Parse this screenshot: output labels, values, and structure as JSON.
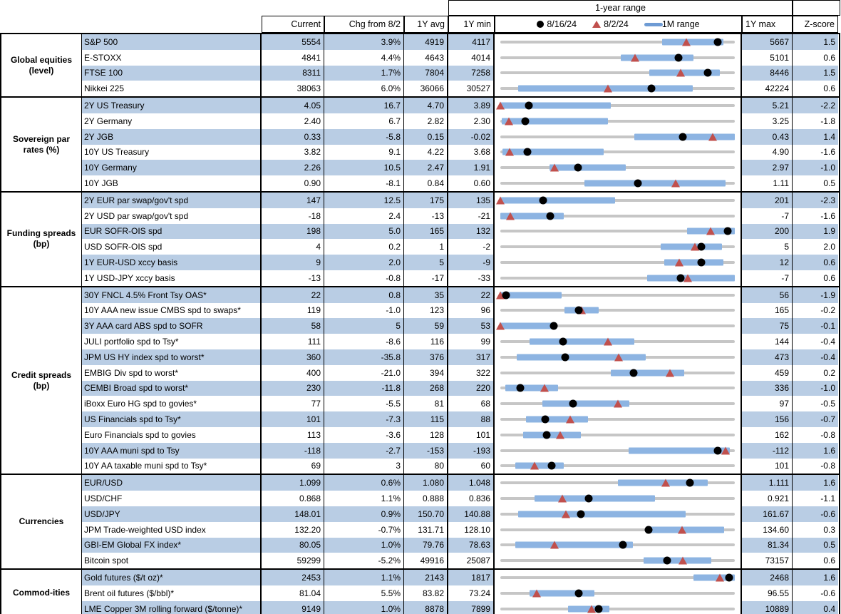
{
  "header": {
    "range_title": "1-year range",
    "col_current": "Current",
    "col_chg": "Chg from 8/2",
    "col_avg": "1Y avg",
    "col_min": "1Y min",
    "col_max": "1Y max",
    "col_z": "Z-score",
    "legend": {
      "dot_label": "8/16/24",
      "tri_label": "8/2/24",
      "bar_label": "1M range"
    }
  },
  "colors": {
    "row_shade": "#b9cde4",
    "range_bar_blue": "#8db4e2",
    "track_gray": "#c6c6c6",
    "triangle_red": "#c0504d",
    "dot_black": "#000000"
  },
  "chart_data": {
    "type": "table",
    "note": "Each row has a 1-year range strip chart: gray track = 1Y min..1Y max, blue bar = 1M range, black dot = 8/16/24 value, red triangle = 8/2/24 value. bar/dot/tri are fractions of the 1Y range.",
    "columns": [
      "Label",
      "Current",
      "Chg from 8/2",
      "1Y avg",
      "1Y min",
      "1Y max",
      "Z-score"
    ],
    "sections": [
      {
        "group": "Global equities (level)",
        "rows": [
          {
            "label": "S&P 500",
            "current": "5554",
            "chg": "3.9%",
            "avg": "4919",
            "min": "4117",
            "max": "5667",
            "z": "1.5",
            "bar": [
              0.69,
              0.95
            ],
            "tri": 0.793,
            "dot": 0.927
          },
          {
            "label": "E-STOXX",
            "current": "4841",
            "chg": "4.4%",
            "avg": "4643",
            "min": "4014",
            "max": "5101",
            "z": "0.6",
            "bar": [
              0.515,
              0.825
            ],
            "tri": 0.573,
            "dot": 0.761
          },
          {
            "label": "FTSE 100",
            "current": "8311",
            "chg": "1.7%",
            "avg": "7804",
            "min": "7258",
            "max": "8446",
            "z": "1.5",
            "bar": [
              0.635,
              0.935
            ],
            "tri": 0.769,
            "dot": 0.886
          },
          {
            "label": "Nikkei 225",
            "current": "38063",
            "chg": "6.0%",
            "avg": "36066",
            "min": "30527",
            "max": "42224",
            "z": "0.6",
            "bar": [
              0.075,
              0.82
            ],
            "tri": 0.46,
            "dot": 0.644
          }
        ]
      },
      {
        "group": "Sovereign par rates (%)",
        "rows": [
          {
            "label": "2Y US Treasury",
            "current": "4.05",
            "chg": "16.7",
            "avg": "4.70",
            "min": "3.89",
            "max": "5.21",
            "z": "-2.2",
            "bar": [
              0.0,
              0.47
            ],
            "tri": 0.0,
            "dot": 0.121
          },
          {
            "label": "2Y Germany",
            "current": "2.40",
            "chg": "6.7",
            "avg": "2.82",
            "min": "2.30",
            "max": "3.25",
            "z": "-1.8",
            "bar": [
              0.005,
              0.46
            ],
            "tri": 0.035,
            "dot": 0.105
          },
          {
            "label": "2Y JGB",
            "current": "0.33",
            "chg": "-5.8",
            "avg": "0.15",
            "min": "-0.02",
            "max": "0.43",
            "z": "1.4",
            "bar": [
              0.57,
              1.0
            ],
            "tri": 0.907,
            "dot": 0.778
          },
          {
            "label": "10Y US Treasury",
            "current": "3.82",
            "chg": "9.1",
            "avg": "4.22",
            "min": "3.68",
            "max": "4.90",
            "z": "-1.6",
            "bar": [
              0.01,
              0.44
            ],
            "tri": 0.04,
            "dot": 0.115
          },
          {
            "label": "10Y Germany",
            "current": "2.26",
            "chg": "10.5",
            "avg": "2.47",
            "min": "1.91",
            "max": "2.97",
            "z": "-1.0",
            "bar": [
              0.21,
              0.535
            ],
            "tri": 0.231,
            "dot": 0.33
          },
          {
            "label": "10Y JGB",
            "current": "0.90",
            "chg": "-8.1",
            "avg": "0.84",
            "min": "0.60",
            "max": "1.11",
            "z": "0.5",
            "bar": [
              0.36,
              0.96
            ],
            "tri": 0.747,
            "dot": 0.588
          }
        ]
      },
      {
        "group": "Funding spreads (bp)",
        "rows": [
          {
            "label": "2Y EUR par swap/gov't spd",
            "current": "147",
            "chg": "12.5",
            "avg": "175",
            "min": "135",
            "max": "201",
            "z": "-2.3",
            "bar": [
              0.0,
              0.49
            ],
            "tri": 0.0,
            "dot": 0.182
          },
          {
            "label": "2Y USD par swap/gov't spd",
            "current": "-18",
            "chg": "2.4",
            "avg": "-13",
            "min": "-21",
            "max": "-7",
            "z": "-1.6",
            "bar": [
              0.0,
              0.27
            ],
            "tri": 0.043,
            "dot": 0.214
          },
          {
            "label": "EUR SOFR-OIS spd",
            "current": "198",
            "chg": "5.0",
            "avg": "165",
            "min": "132",
            "max": "200",
            "z": "1.9",
            "bar": [
              0.795,
              1.0
            ],
            "tri": 0.897,
            "dot": 0.971
          },
          {
            "label": "USD SOFR-OIS spd",
            "current": "4",
            "chg": "0.2",
            "avg": "1",
            "min": "-2",
            "max": "5",
            "z": "2.0",
            "bar": [
              0.685,
              0.945
            ],
            "tri": 0.829,
            "dot": 0.857
          },
          {
            "label": "1Y EUR-USD xccy basis",
            "current": "9",
            "chg": "2.0",
            "avg": "5",
            "min": "-9",
            "max": "12",
            "z": "0.6",
            "bar": [
              0.7,
              0.95
            ],
            "tri": 0.762,
            "dot": 0.857
          },
          {
            "label": "1Y USD-JPY xccy basis",
            "current": "-13",
            "chg": "-0.8",
            "avg": "-17",
            "min": "-33",
            "max": "-7",
            "z": "0.6",
            "bar": [
              0.625,
              1.0
            ],
            "tri": 0.8,
            "dot": 0.769
          }
        ]
      },
      {
        "group": "Credit spreads (bp)",
        "rows": [
          {
            "label": "30Y FNCL 4.5% Front Tsy OAS*",
            "current": "22",
            "chg": "0.8",
            "avg": "35",
            "min": "22",
            "max": "56",
            "z": "-1.9",
            "bar": [
              0.0,
              0.26
            ],
            "tri": 0.0,
            "dot": 0.025
          },
          {
            "label": "10Y AAA new issue CMBS spd to swaps*",
            "current": "119",
            "chg": "-1.0",
            "avg": "123",
            "min": "96",
            "max": "165",
            "z": "-0.2",
            "bar": [
              0.275,
              0.42
            ],
            "tri": 0.348,
            "dot": 0.333
          },
          {
            "label": "3Y AAA card ABS spd to SOFR",
            "current": "58",
            "chg": "5",
            "avg": "59",
            "min": "53",
            "max": "75",
            "z": "-0.1",
            "bar": [
              0.0,
              0.22
            ],
            "tri": 0.0,
            "dot": 0.227
          },
          {
            "label": "JULI portfolio spd to Tsy*",
            "current": "111",
            "chg": "-8.6",
            "avg": "116",
            "min": "99",
            "max": "144",
            "z": "-0.4",
            "bar": [
              0.125,
              0.57
            ],
            "tri": 0.458,
            "dot": 0.267
          },
          {
            "label": "JPM US HY index spd to worst*",
            "current": "360",
            "chg": "-35.8",
            "avg": "376",
            "min": "317",
            "max": "473",
            "z": "-0.4",
            "bar": [
              0.07,
              0.62
            ],
            "tri": 0.505,
            "dot": 0.276
          },
          {
            "label": "EMBIG Div spd to worst*",
            "current": "400",
            "chg": "-21.0",
            "avg": "394",
            "min": "322",
            "max": "459",
            "z": "0.2",
            "bar": [
              0.47,
              0.785
            ],
            "tri": 0.723,
            "dot": 0.569
          },
          {
            "label": "CEMBI Broad spd to worst*",
            "current": "230",
            "chg": "-11.8",
            "avg": "268",
            "min": "220",
            "max": "336",
            "z": "-1.0",
            "bar": [
              0.02,
              0.245
            ],
            "tri": 0.188,
            "dot": 0.086
          },
          {
            "label": "iBoxx Euro HG spd to govies*",
            "current": "77",
            "chg": "-5.5",
            "avg": "81",
            "min": "68",
            "max": "97",
            "z": "-0.5",
            "bar": [
              0.18,
              0.55
            ],
            "tri": 0.5,
            "dot": 0.31
          },
          {
            "label": "US Financials spd to Tsy*",
            "current": "101",
            "chg": "-7.3",
            "avg": "115",
            "min": "88",
            "max": "156",
            "z": "-0.7",
            "bar": [
              0.108,
              0.375
            ],
            "tri": 0.299,
            "dot": 0.191
          },
          {
            "label": "Euro Financials spd to govies",
            "current": "113",
            "chg": "-3.6",
            "avg": "128",
            "min": "101",
            "max": "162",
            "z": "-0.8",
            "bar": [
              0.098,
              0.342
            ],
            "tri": 0.256,
            "dot": 0.197
          },
          {
            "label": "10Y AAA muni spd to Tsy",
            "current": "-118",
            "chg": "-2.7",
            "avg": "-153",
            "min": "-193",
            "max": "-112",
            "z": "1.6",
            "bar": [
              0.547,
              0.978
            ],
            "tri": 0.959,
            "dot": 0.926
          },
          {
            "label": "10Y AA taxable muni spd to Tsy*",
            "current": "69",
            "chg": "3",
            "avg": "80",
            "min": "60",
            "max": "101",
            "z": "-0.8",
            "bar": [
              0.065,
              0.27
            ],
            "tri": 0.146,
            "dot": 0.22
          }
        ]
      },
      {
        "group": "Currencies",
        "rows": [
          {
            "label": "EUR/USD",
            "current": "1.099",
            "chg": "0.6%",
            "avg": "1.080",
            "min": "1.048",
            "max": "1.111",
            "z": "1.6",
            "bar": [
              0.5,
              0.885
            ],
            "tri": 0.705,
            "dot": 0.81
          },
          {
            "label": "USD/CHF",
            "current": "0.868",
            "chg": "1.1%",
            "avg": "0.888",
            "min": "0.836",
            "max": "0.921",
            "z": "-1.1",
            "bar": [
              0.145,
              0.66
            ],
            "tri": 0.265,
            "dot": 0.376
          },
          {
            "label": "USD/JPY",
            "current": "148.01",
            "chg": "0.9%",
            "avg": "150.70",
            "min": "140.88",
            "max": "161.67",
            "z": "-0.6",
            "bar": [
              0.075,
              0.79
            ],
            "tri": 0.279,
            "dot": 0.343
          },
          {
            "label": "JPM Trade-weighted USD index",
            "current": "132.20",
            "chg": "-0.7%",
            "avg": "131.71",
            "min": "128.10",
            "max": "134.60",
            "z": "0.3",
            "bar": [
              0.62,
              0.955
            ],
            "tri": 0.774,
            "dot": 0.631
          },
          {
            "label": "GBI-EM Global FX index*",
            "current": "80.05",
            "chg": "1.0%",
            "avg": "79.76",
            "min": "78.63",
            "max": "81.34",
            "z": "0.5",
            "bar": [
              0.065,
              0.565
            ],
            "tri": 0.232,
            "dot": 0.524
          },
          {
            "label": "Bitcoin spot",
            "current": "59299",
            "chg": "-5.2%",
            "avg": "49916",
            "min": "25087",
            "max": "73157",
            "z": "0.6",
            "bar": [
              0.61,
              0.9
            ],
            "tri": 0.779,
            "dot": 0.712
          }
        ]
      },
      {
        "group": "Commod-ities",
        "rows": [
          {
            "label": "Gold futures ($/t oz)*",
            "current": "2453",
            "chg": "1.1%",
            "avg": "2143",
            "min": "1817",
            "max": "2468",
            "z": "1.6",
            "bar": [
              0.825,
              1.0
            ],
            "tri": 0.936,
            "dot": 0.977
          },
          {
            "label": "Brent oil futures ($/bbl)*",
            "current": "81.04",
            "chg": "5.5%",
            "avg": "83.82",
            "min": "73.24",
            "max": "96.55",
            "z": "-0.6",
            "bar": [
              0.125,
              0.4
            ],
            "tri": 0.154,
            "dot": 0.335
          },
          {
            "label": "LME Copper 3M rolling forward ($/tonne)*",
            "current": "9149",
            "chg": "1.0%",
            "avg": "8878",
            "min": "7899",
            "max": "10889",
            "z": "0.4",
            "bar": [
              0.29,
              0.465
            ],
            "tri": 0.388,
            "dot": 0.418
          }
        ]
      }
    ]
  }
}
